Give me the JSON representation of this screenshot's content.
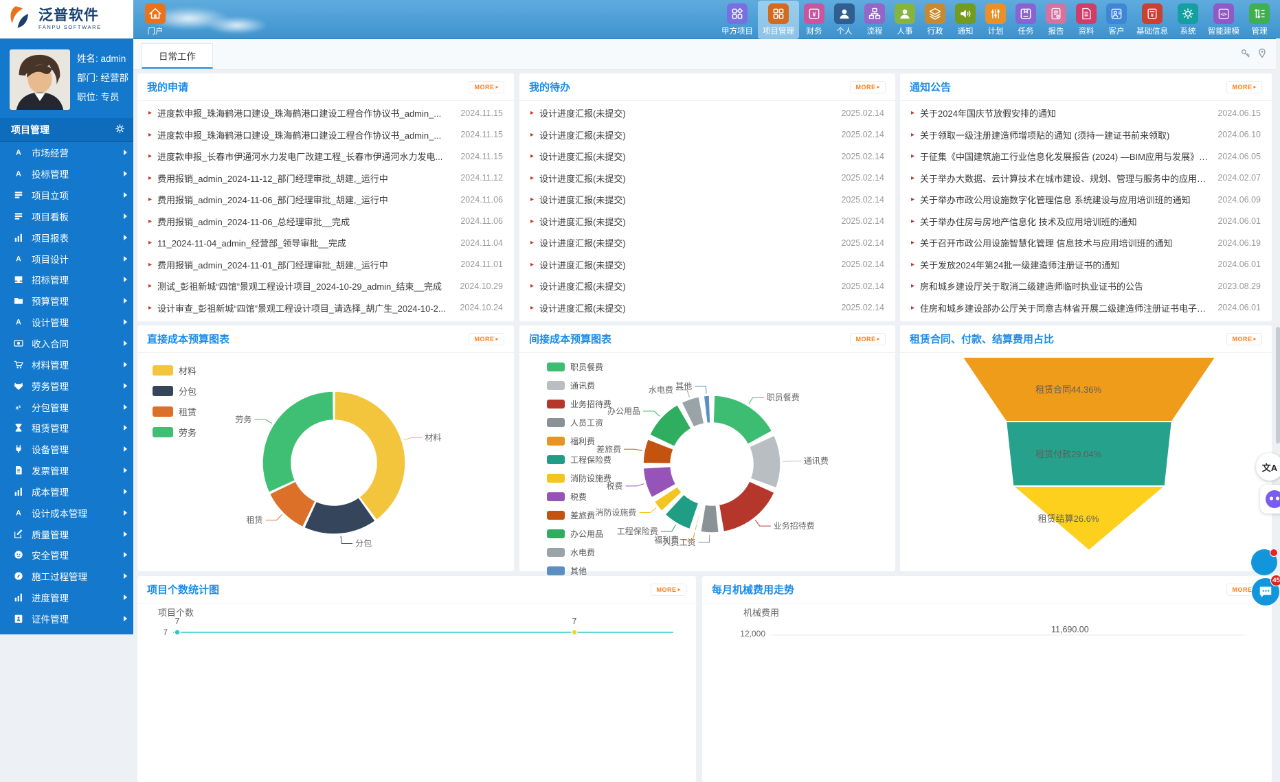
{
  "ui": {
    "more_label": "MORE"
  },
  "topbar": {
    "logo_title": "泛普软件",
    "logo_subtitle": "FANPU SOFTWARE",
    "home": {
      "label": "门户",
      "color": "#e8731c",
      "icon": "home"
    },
    "nav_items": [
      {
        "label": "甲方项目",
        "color": "#7a6fe0",
        "icon": "grid-diamond",
        "active": false
      },
      {
        "label": "项目管理",
        "color": "#d26a20",
        "icon": "grid",
        "active": true
      },
      {
        "label": "财务",
        "color": "#c9559e",
        "icon": "yen",
        "active": false
      },
      {
        "label": "个人",
        "color": "#2f5e8f",
        "icon": "person",
        "active": false
      },
      {
        "label": "流程",
        "color": "#9565c8",
        "icon": "orgchart",
        "active": false
      },
      {
        "label": "人事",
        "color": "#85b540",
        "icon": "person",
        "active": false
      },
      {
        "label": "行政",
        "color": "#c98a2d",
        "icon": "layers",
        "active": false
      },
      {
        "label": "通知",
        "color": "#729b1f",
        "icon": "speaker",
        "active": false
      },
      {
        "label": "计划",
        "color": "#e8902a",
        "icon": "sliders",
        "active": false
      },
      {
        "label": "任务",
        "color": "#8a63d2",
        "icon": "box",
        "active": false
      },
      {
        "label": "报告",
        "color": "#d5729f",
        "icon": "doc-mic",
        "active": false
      },
      {
        "label": "资料",
        "color": "#cf3d69",
        "icon": "doc",
        "active": false
      },
      {
        "label": "客户",
        "color": "#3f87d4",
        "icon": "person-box",
        "active": false
      },
      {
        "label": "基础信息",
        "color": "#cd3e33",
        "icon": "doc-yen",
        "active": false
      },
      {
        "label": "系统",
        "color": "#14a0a0",
        "icon": "gear",
        "active": false
      },
      {
        "label": "智能建模",
        "color": "#9159c8",
        "icon": "code",
        "active": false
      },
      {
        "label": "管理",
        "color": "#3faf4f",
        "icon": "list-arrows",
        "active": false
      }
    ]
  },
  "sidebar": {
    "user": {
      "name_label": "姓名:",
      "name": "admin",
      "dept_label": "部门:",
      "dept": "经营部",
      "title_label": "职位:",
      "title": "专员"
    },
    "module_title": "项目管理",
    "items": [
      {
        "label": "市场经营",
        "icon": "font"
      },
      {
        "label": "投标管理",
        "icon": "font"
      },
      {
        "label": "项目立项",
        "icon": "board"
      },
      {
        "label": "项目看板",
        "icon": "board"
      },
      {
        "label": "项目报表",
        "icon": "chart"
      },
      {
        "label": "项目设计",
        "icon": "font"
      },
      {
        "label": "招标管理",
        "icon": "inbox"
      },
      {
        "label": "预算管理",
        "icon": "folder"
      },
      {
        "label": "设计管理",
        "icon": "font"
      },
      {
        "label": "收入合同",
        "icon": "coin"
      },
      {
        "label": "材料管理",
        "icon": "cart"
      },
      {
        "label": "劳务管理",
        "icon": "fox"
      },
      {
        "label": "分包管理",
        "icon": "x2"
      },
      {
        "label": "租赁管理",
        "icon": "hourglass"
      },
      {
        "label": "设备管理",
        "icon": "plug"
      },
      {
        "label": "发票管理",
        "icon": "doc"
      },
      {
        "label": "成本管理",
        "icon": "chart"
      },
      {
        "label": "设计成本管理",
        "icon": "font"
      },
      {
        "label": "质量管理",
        "icon": "edit"
      },
      {
        "label": "安全管理",
        "icon": "face"
      },
      {
        "label": "施工过程管理",
        "icon": "compass"
      },
      {
        "label": "进度管理",
        "icon": "chart"
      },
      {
        "label": "证件管理",
        "icon": "idcard"
      }
    ]
  },
  "tabs": {
    "active": "日常工作"
  },
  "panels": {
    "my_requests": {
      "title": "我的申请",
      "items": [
        {
          "text": "进度款申报_珠海鹤港口建设_珠海鹤港口建设工程合作协议书_admin_...",
          "date": "2024.11.15"
        },
        {
          "text": "进度款申报_珠海鹤港口建设_珠海鹤港口建设工程合作协议书_admin_...",
          "date": "2024.11.15"
        },
        {
          "text": "进度款申报_长春市伊通河水力发电厂改建工程_长春市伊通河水力发电...",
          "date": "2024.11.15"
        },
        {
          "text": "费用报销_admin_2024-11-12_部门经理审批_胡建,_运行中",
          "date": "2024.11.12"
        },
        {
          "text": "费用报销_admin_2024-11-06_部门经理审批_胡建,_运行中",
          "date": "2024.11.06"
        },
        {
          "text": "费用报销_admin_2024-11-06_总经理审批__完成",
          "date": "2024.11.06"
        },
        {
          "text": "11_2024-11-04_admin_经营部_领导审批__完成",
          "date": "2024.11.04"
        },
        {
          "text": "费用报销_admin_2024-11-01_部门经理审批_胡建,_运行中",
          "date": "2024.11.01"
        },
        {
          "text": "测试_彭祖新城“四馆”景观工程设计项目_2024-10-29_admin_结束__完成",
          "date": "2024.10.29"
        },
        {
          "text": "设计审查_彭祖新城“四馆”景观工程设计项目_请选择_胡广生_2024-10-2...",
          "date": "2024.10.24"
        }
      ]
    },
    "my_todos": {
      "title": "我的待办",
      "items": [
        {
          "text": "设计进度汇报(未提交)",
          "date": "2025.02.14"
        },
        {
          "text": "设计进度汇报(未提交)",
          "date": "2025.02.14"
        },
        {
          "text": "设计进度汇报(未提交)",
          "date": "2025.02.14"
        },
        {
          "text": "设计进度汇报(未提交)",
          "date": "2025.02.14"
        },
        {
          "text": "设计进度汇报(未提交)",
          "date": "2025.02.14"
        },
        {
          "text": "设计进度汇报(未提交)",
          "date": "2025.02.14"
        },
        {
          "text": "设计进度汇报(未提交)",
          "date": "2025.02.14"
        },
        {
          "text": "设计进度汇报(未提交)",
          "date": "2025.02.14"
        },
        {
          "text": "设计进度汇报(未提交)",
          "date": "2025.02.14"
        },
        {
          "text": "设计进度汇报(未提交)",
          "date": "2025.02.14"
        }
      ]
    },
    "notices": {
      "title": "通知公告",
      "items": [
        {
          "text": "关于2024年国庆节放假安排的通知",
          "date": "2024.06.15"
        },
        {
          "text": "关于领取一级注册建造师增项贴的通知 (须持一建证书前来领取)",
          "date": "2024.06.10"
        },
        {
          "text": "于征集《中国建筑施工行业信息化发展报告 (2024) —BIM应用与发展》材料...",
          "date": "2024.06.05"
        },
        {
          "text": "关于举办大数据、云计算技术在城市建设、规划、管理与服务中的应用培训班...",
          "date": "2024.02.07"
        },
        {
          "text": "关于举办市政公用设施数字化管理信息 系统建设与应用培训班的通知",
          "date": "2024.06.09"
        },
        {
          "text": "关于举办住房与房地产信息化 技术及应用培训班的通知",
          "date": "2024.06.01"
        },
        {
          "text": "关于召开市政公用设施智慧化管理 信息技术与应用培训班的通知",
          "date": "2024.06.19"
        },
        {
          "text": "关于发放2024年第24批一级建造师注册证书的通知",
          "date": "2024.06.01"
        },
        {
          "text": "房和城乡建设厅关于取消二级建造师临时执业证书的公告",
          "date": "2023.08.29"
        },
        {
          "text": "住房和城乡建设部办公厅关于同意吉林省开展二级建造师注册证书电子化试点...",
          "date": "2024.06.01"
        }
      ]
    }
  },
  "chart_data": [
    {
      "type": "donut",
      "title": "直接成本预算图表",
      "legend_position": "top-left",
      "values_are": "percent-estimates",
      "series": [
        {
          "name": "材料",
          "value": 40,
          "color": "#f2c53d"
        },
        {
          "name": "分包",
          "value": 17,
          "color": "#35465c"
        },
        {
          "name": "租赁",
          "value": 11,
          "color": "#dd7028"
        },
        {
          "name": "劳务",
          "value": 32,
          "color": "#3fbf74"
        }
      ]
    },
    {
      "type": "donut",
      "title": "间接成本预算图表",
      "legend_position": "top-left",
      "values_are": "percent-estimates",
      "series": [
        {
          "name": "职员餐费",
          "value": 18,
          "color": "#3dbd72"
        },
        {
          "name": "通讯费",
          "value": 14,
          "color": "#b9bec2"
        },
        {
          "name": "业务招待费",
          "value": 17,
          "color": "#b5372c"
        },
        {
          "name": "人员工资",
          "value": 5.5,
          "color": "#8a9197"
        },
        {
          "name": "福利费",
          "value": 1.5,
          "color": "#e89420"
        },
        {
          "name": "工程保险费",
          "value": 8,
          "color": "#1f9e85"
        },
        {
          "name": "消防设施费",
          "value": 4,
          "color": "#f3c520"
        },
        {
          "name": "税费",
          "value": 8.5,
          "color": "#9653b8"
        },
        {
          "name": "差旅费",
          "value": 7,
          "color": "#c4530f"
        },
        {
          "name": "办公用品",
          "value": 11,
          "color": "#2fae60"
        },
        {
          "name": "水电费",
          "value": 5.5,
          "color": "#9aa4a8"
        },
        {
          "name": "其他",
          "value": 2.5,
          "color": "#5b8fc0"
        }
      ]
    },
    {
      "type": "funnel",
      "title": "租赁合同、付款、结算费用占比",
      "series": [
        {
          "name": "租赁合同",
          "value": 44.36,
          "label": "租赁合同44.36%",
          "color": "#f09c1b"
        },
        {
          "name": "租赁付款",
          "value": 29.04,
          "label": "租赁付款29.04%",
          "color": "#26a28c"
        },
        {
          "name": "租赁结算",
          "value": 26.6,
          "label": "租赁结算26.6%",
          "color": "#fdd01e"
        }
      ]
    },
    {
      "type": "line",
      "title": "项目个数统计图",
      "ylabel": "项目个数",
      "axis_tick": "7",
      "visible_points": [
        {
          "value": "7",
          "color": "#2ec7c9"
        },
        {
          "value": "7",
          "color": "#f5d32c"
        }
      ]
    },
    {
      "type": "line",
      "title": "每月机械费用走势",
      "ylabel": "机械费用",
      "axis_tick": "12,000",
      "visible_label": "11,690.00"
    }
  ],
  "floating": {
    "translate_label": "文A",
    "chat_badge": "45"
  }
}
